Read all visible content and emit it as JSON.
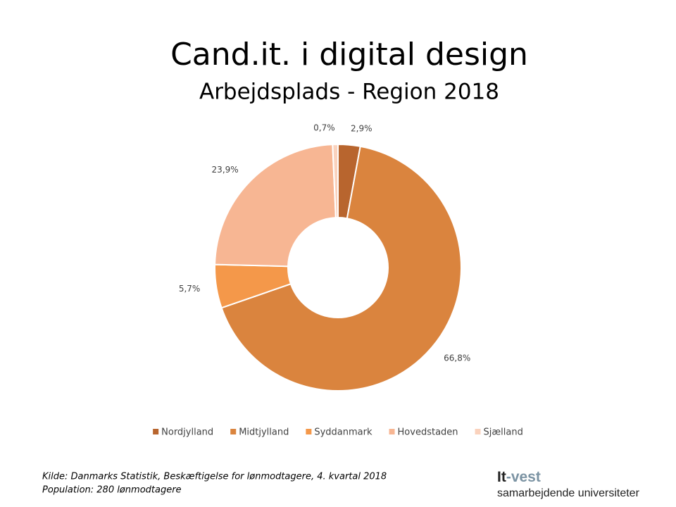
{
  "chart_data": {
    "type": "donut",
    "title": "Cand.it. i digital design",
    "subtitle": "Arbejdsplads - Region 2018",
    "categories": [
      "Nordjylland",
      "Midtjylland",
      "Syddanmark",
      "Hovedstaden",
      "Sjælland"
    ],
    "values": [
      2.9,
      66.8,
      5.7,
      23.9,
      0.7
    ],
    "value_labels": [
      "2,9%",
      "66,8%",
      "5,7%",
      "23,9%",
      "0,7%"
    ],
    "colors": [
      "#b8652e",
      "#da843e",
      "#f4984a",
      "#f7b693",
      "#fad2bd"
    ],
    "legend": "bottom"
  },
  "footer": {
    "source": "Kilde: Danmarks Statistik, Beskæftigelse for lønmodtagere, 4. kvartal 2018",
    "population": "Population: 280 lønmodtagere"
  },
  "logo": {
    "name": "It",
    "name_suffix": "-vest",
    "tagline": "samarbejdende universiteter"
  }
}
